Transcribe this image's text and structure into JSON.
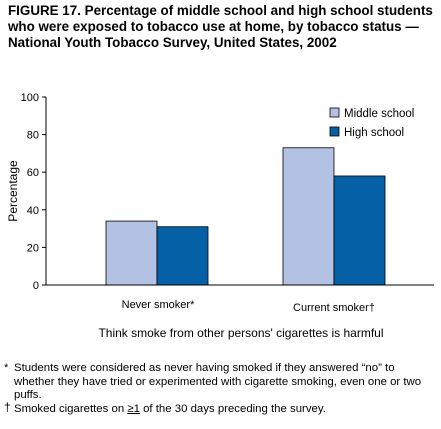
{
  "figure": {
    "title": "FIGURE 17. Percentage of middle school and high school students who were exposed to tobacco use at home, by tobacco status — National Youth Tobacco Survey, United States, 2002"
  },
  "chart_data": {
    "type": "bar",
    "categories": [
      "Never smoker*",
      "Current smoker†"
    ],
    "series": [
      {
        "name": "Middle school",
        "values": [
          34,
          73
        ],
        "color": "#b3c2e2"
      },
      {
        "name": "High school",
        "values": [
          31,
          58
        ],
        "color": "#0560a6"
      }
    ],
    "xlabel": "Think smoke from other persons' cigarettes is harmful",
    "ylabel": "Percentage",
    "ylim": [
      0,
      100
    ],
    "yticks": [
      "0",
      "20",
      "40",
      "60",
      "80",
      "100"
    ],
    "grid": false,
    "legend_position": "top-right"
  },
  "footnotes": {
    "never_mark": "*",
    "never_text": "Students were considered as never having smoked if they answered “no” to whether they have tried or experimented with cigarette smoking, even one or two puffs.",
    "current_mark": "†",
    "current_pre": "Smoked cigarettes on ",
    "current_ge": "≥1",
    "current_post": " of the 30 days preceding the survey."
  }
}
